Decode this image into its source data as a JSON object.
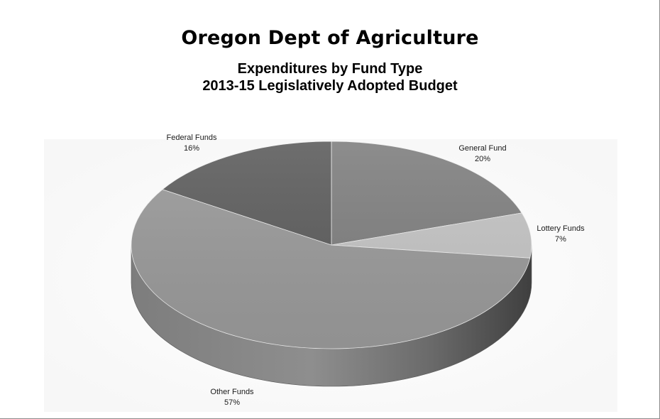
{
  "chart_data": {
    "type": "pie",
    "title": "Oregon Dept of Agriculture",
    "subtitle_lines": [
      "Expenditures by Fund Type",
      "2013-15 Legislatively Adopted Budget"
    ],
    "slices": [
      {
        "name": "General Fund",
        "value": 20,
        "value_label": "20%",
        "color": "#808080"
      },
      {
        "name": "Lottery Funds",
        "value": 7,
        "value_label": "7%",
        "color": "#c4c4c4"
      },
      {
        "name": "Other Funds",
        "value": 57,
        "value_label": "57%",
        "color": "#9a9a9a"
      },
      {
        "name": "Federal Funds",
        "value": 16,
        "value_label": "16%",
        "color": "#5e5e5e"
      }
    ],
    "style": "3d",
    "start_angle": "12 o'clock",
    "direction": "clockwise",
    "legend": "none (data labels)"
  }
}
